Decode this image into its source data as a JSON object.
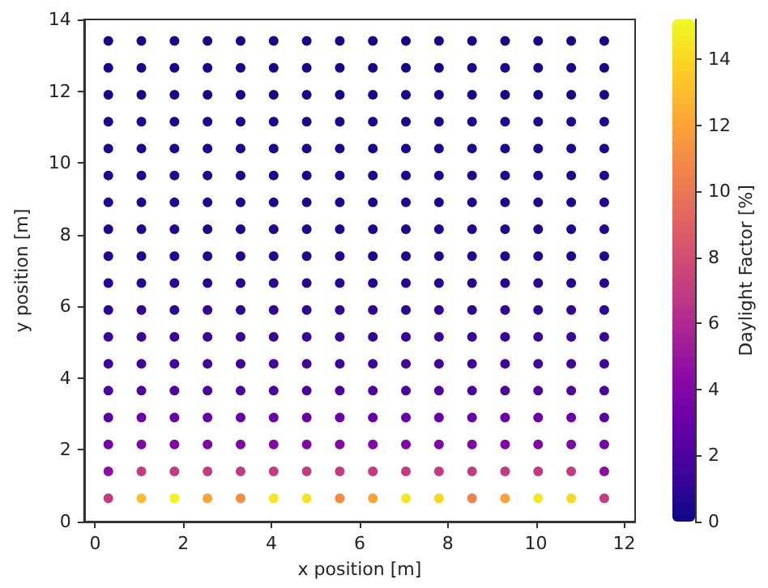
{
  "chart_data": {
    "type": "scatter",
    "xlabel": "x position [m]",
    "ylabel": "y position [m]",
    "clabel": "Daylight Factor [%]",
    "marker": "circle",
    "xlim": [
      -0.25,
      12.25
    ],
    "ylim": [
      0,
      14
    ],
    "xticks": [
      0,
      2,
      4,
      6,
      8,
      10,
      12
    ],
    "yticks": [
      0,
      2,
      4,
      6,
      8,
      10,
      12,
      14
    ],
    "clim": [
      0,
      15.2
    ],
    "cticks": [
      0,
      2,
      4,
      6,
      8,
      10,
      12,
      14
    ],
    "x": [
      0.3,
      1.05,
      1.8,
      2.55,
      3.3,
      4.05,
      4.8,
      5.55,
      6.3,
      7.05,
      7.8,
      8.55,
      9.3,
      10.05,
      10.8,
      11.55,
      0.3,
      1.05,
      1.8,
      2.55,
      3.3,
      4.05,
      4.8,
      5.55,
      6.3,
      7.05,
      7.8,
      8.55,
      9.3,
      10.05,
      10.8,
      11.55,
      0.3,
      1.05,
      1.8,
      2.55,
      3.3,
      4.05,
      4.8,
      5.55,
      6.3,
      7.05,
      7.8,
      8.55,
      9.3,
      10.05,
      10.8,
      11.55,
      0.3,
      1.05,
      1.8,
      2.55,
      3.3,
      4.05,
      4.8,
      5.55,
      6.3,
      7.05,
      7.8,
      8.55,
      9.3,
      10.05,
      10.8,
      11.55,
      0.3,
      1.05,
      1.8,
      2.55,
      3.3,
      4.05,
      4.8,
      5.55,
      6.3,
      7.05,
      7.8,
      8.55,
      9.3,
      10.05,
      10.8,
      11.55,
      0.3,
      1.05,
      1.8,
      2.55,
      3.3,
      4.05,
      4.8,
      5.55,
      6.3,
      7.05,
      7.8,
      8.55,
      9.3,
      10.05,
      10.8,
      11.55,
      0.3,
      1.05,
      1.8,
      2.55,
      3.3,
      4.05,
      4.8,
      5.55,
      6.3,
      7.05,
      7.8,
      8.55,
      9.3,
      10.05,
      10.8,
      11.55,
      0.3,
      1.05,
      1.8,
      2.55,
      3.3,
      4.05,
      4.8,
      5.55,
      6.3,
      7.05,
      7.8,
      8.55,
      9.3,
      10.05,
      10.8,
      11.55,
      0.3,
      1.05,
      1.8,
      2.55,
      3.3,
      4.05,
      4.8,
      5.55,
      6.3,
      7.05,
      7.8,
      8.55,
      9.3,
      10.05,
      10.8,
      11.55,
      0.3,
      1.05,
      1.8,
      2.55,
      3.3,
      4.05,
      4.8,
      5.55,
      6.3,
      7.05,
      7.8,
      8.55,
      9.3,
      10.05,
      10.8,
      11.55,
      0.3,
      1.05,
      1.8,
      2.55,
      3.3,
      4.05,
      4.8,
      5.55,
      6.3,
      7.05,
      7.8,
      8.55,
      9.3,
      10.05,
      10.8,
      11.55,
      0.3,
      1.05,
      1.8,
      2.55,
      3.3,
      4.05,
      4.8,
      5.55,
      6.3,
      7.05,
      7.8,
      8.55,
      9.3,
      10.05,
      10.8,
      11.55,
      0.3,
      1.05,
      1.8,
      2.55,
      3.3,
      4.05,
      4.8,
      5.55,
      6.3,
      7.05,
      7.8,
      8.55,
      9.3,
      10.05,
      10.8,
      11.55,
      0.3,
      1.05,
      1.8,
      2.55,
      3.3,
      4.05,
      4.8,
      5.55,
      6.3,
      7.05,
      7.8,
      8.55,
      9.3,
      10.05,
      10.8,
      11.55,
      0.3,
      1.05,
      1.8,
      2.55,
      3.3,
      4.05,
      4.8,
      5.55,
      6.3,
      7.05,
      7.8,
      8.55,
      9.3,
      10.05,
      10.8,
      11.55,
      0.3,
      1.05,
      1.8,
      2.55,
      3.3,
      4.05,
      4.8,
      5.55,
      6.3,
      7.05,
      7.8,
      8.55,
      9.3,
      10.05,
      10.8,
      11.55,
      0.3,
      1.05,
      1.8,
      2.55,
      3.3,
      4.05,
      4.8,
      5.55,
      6.3,
      7.05,
      7.8,
      8.55,
      9.3,
      10.05,
      10.8,
      11.55,
      0.3,
      1.05,
      1.8,
      2.55,
      3.3,
      4.05,
      4.8,
      5.55,
      6.3,
      7.05,
      7.8,
      8.55,
      9.3,
      10.05,
      10.8,
      11.55
    ],
    "values": [
      0.65,
      0.65,
      0.65,
      0.65,
      0.65,
      0.65,
      0.65,
      0.65,
      0.65,
      0.65,
      0.65,
      0.65,
      0.65,
      0.65,
      0.65,
      0.65,
      1.4,
      1.4,
      1.4,
      1.4,
      1.4,
      1.4,
      1.4,
      1.4,
      1.4,
      1.4,
      1.4,
      1.4,
      1.4,
      1.4,
      1.4,
      1.4,
      2.15,
      2.15,
      2.15,
      2.15,
      2.15,
      2.15,
      2.15,
      2.15,
      2.15,
      2.15,
      2.15,
      2.15,
      2.15,
      2.15,
      2.15,
      2.15,
      2.9,
      2.9,
      2.9,
      2.9,
      2.9,
      2.9,
      2.9,
      2.9,
      2.9,
      2.9,
      2.9,
      2.9,
      2.9,
      2.9,
      2.9,
      2.9,
      3.65,
      3.65,
      3.65,
      3.65,
      3.65,
      3.65,
      3.65,
      3.65,
      3.65,
      3.65,
      3.65,
      3.65,
      3.65,
      3.65,
      3.65,
      3.65,
      4.4,
      4.4,
      4.4,
      4.4,
      4.4,
      4.4,
      4.4,
      4.4,
      4.4,
      4.4,
      4.4,
      4.4,
      4.4,
      4.4,
      4.4,
      4.4,
      5.15,
      5.15,
      5.15,
      5.15,
      5.15,
      5.15,
      5.15,
      5.15,
      5.15,
      5.15,
      5.15,
      5.15,
      5.15,
      5.15,
      5.15,
      5.15,
      5.9,
      5.9,
      5.9,
      5.9,
      5.9,
      5.9,
      5.9,
      5.9,
      5.9,
      5.9,
      5.9,
      5.9,
      5.9,
      5.9,
      5.9,
      5.9,
      6.65,
      6.65,
      6.65,
      6.65,
      6.65,
      6.65,
      6.65,
      6.65,
      6.65,
      6.65,
      6.65,
      6.65,
      6.65,
      6.65,
      6.65,
      6.65,
      7.4,
      7.4,
      7.4,
      7.4,
      7.4,
      7.4,
      7.4,
      7.4,
      7.4,
      7.4,
      7.4,
      7.4,
      7.4,
      7.4,
      7.4,
      7.4,
      8.15,
      8.15,
      8.15,
      8.15,
      8.15,
      8.15,
      8.15,
      8.15,
      8.15,
      8.15,
      8.15,
      8.15,
      8.15,
      8.15,
      8.15,
      8.15,
      8.9,
      8.9,
      8.9,
      8.9,
      8.9,
      8.9,
      8.9,
      8.9,
      8.9,
      8.9,
      8.9,
      8.9,
      8.9,
      8.9,
      8.9,
      8.9,
      9.65,
      9.65,
      9.65,
      9.65,
      9.65,
      9.65,
      9.65,
      9.65,
      9.65,
      9.65,
      9.65,
      9.65,
      9.65,
      9.65,
      9.65,
      9.65,
      10.4,
      10.4,
      10.4,
      10.4,
      10.4,
      10.4,
      10.4,
      10.4,
      10.4,
      10.4,
      10.4,
      10.4,
      10.4,
      10.4,
      10.4,
      10.4,
      11.15,
      11.15,
      11.15,
      11.15,
      11.15,
      11.15,
      11.15,
      11.15,
      11.15,
      11.15,
      11.15,
      11.15,
      11.15,
      11.15,
      11.15,
      11.15,
      11.9,
      11.9,
      11.9,
      11.9,
      11.9,
      11.9,
      11.9,
      11.9,
      11.9,
      11.9,
      11.9,
      11.9,
      11.9,
      11.9,
      11.9,
      11.9,
      12.65,
      12.65,
      12.65,
      12.65,
      12.65,
      12.65,
      12.65,
      12.65,
      12.65,
      12.65,
      12.65,
      12.65,
      12.65,
      12.65,
      12.65,
      12.65,
      13.4,
      13.4,
      13.4,
      13.4,
      13.4,
      13.4,
      13.4,
      13.4,
      13.4,
      13.4,
      13.4,
      13.4,
      13.4,
      13.4,
      13.4,
      13.4
    ],
    "cvalues": [
      7,
      13,
      15,
      12,
      11,
      14.5,
      14.5,
      11,
      12,
      14.5,
      14,
      10.5,
      12,
      14.5,
      14,
      7,
      4.5,
      7,
      7,
      7,
      7,
      7,
      7,
      7,
      7,
      7,
      7,
      7,
      7,
      7,
      7,
      4.5,
      3.5,
      4,
      4,
      4,
      4,
      4,
      4,
      4,
      4,
      4,
      4,
      4,
      4,
      4,
      4,
      3.5,
      2.5,
      3,
      3,
      3,
      3,
      3,
      3,
      3,
      3,
      3,
      3,
      3,
      3,
      3,
      3,
      2.5,
      2,
      2,
      2,
      2,
      2,
      2,
      2,
      2,
      2,
      2,
      2,
      2,
      2,
      2,
      2,
      2,
      1.5,
      1.5,
      1.5,
      1.5,
      1.5,
      1.5,
      1.5,
      1.5,
      1.5,
      1.5,
      1.5,
      1.5,
      1.5,
      1.5,
      1.5,
      1.5,
      1.2,
      1.2,
      1.2,
      1.2,
      1.2,
      1.2,
      1.2,
      1.2,
      1.2,
      1.2,
      1.2,
      1.2,
      1.2,
      1.2,
      1.2,
      1.2,
      1,
      1,
      1,
      1,
      1,
      1,
      1,
      1,
      1,
      1,
      1,
      1,
      1,
      1,
      1,
      1,
      0.8,
      0.8,
      0.8,
      0.8,
      0.8,
      0.8,
      0.8,
      0.8,
      0.8,
      0.8,
      0.8,
      0.8,
      0.8,
      0.8,
      0.8,
      0.8,
      0.7,
      0.7,
      0.7,
      0.7,
      0.7,
      0.7,
      0.7,
      0.7,
      0.7,
      0.7,
      0.7,
      0.7,
      0.7,
      0.7,
      0.7,
      0.7,
      0.6,
      0.6,
      0.6,
      0.6,
      0.6,
      0.6,
      0.6,
      0.6,
      0.6,
      0.6,
      0.6,
      0.6,
      0.6,
      0.6,
      0.6,
      0.6,
      0.5,
      0.5,
      0.5,
      0.5,
      0.5,
      0.5,
      0.5,
      0.5,
      0.5,
      0.5,
      0.5,
      0.5,
      0.5,
      0.5,
      0.5,
      0.5,
      0.5,
      0.5,
      0.5,
      0.5,
      0.5,
      0.5,
      0.5,
      0.5,
      0.5,
      0.5,
      0.5,
      0.5,
      0.5,
      0.5,
      0.5,
      0.5,
      0.4,
      0.4,
      0.4,
      0.4,
      0.4,
      0.4,
      0.4,
      0.4,
      0.4,
      0.4,
      0.4,
      0.4,
      0.4,
      0.4,
      0.4,
      0.4,
      0.4,
      0.4,
      0.4,
      0.4,
      0.4,
      0.4,
      0.4,
      0.4,
      0.4,
      0.4,
      0.4,
      0.4,
      0.4,
      0.4,
      0.4,
      0.4,
      0.3,
      0.3,
      0.3,
      0.3,
      0.3,
      0.3,
      0.3,
      0.3,
      0.3,
      0.3,
      0.3,
      0.3,
      0.3,
      0.3,
      0.3,
      0.3,
      0.3,
      0.3,
      0.3,
      0.3,
      0.3,
      0.3,
      0.3,
      0.3,
      0.3,
      0.3,
      0.3,
      0.3,
      0.3,
      0.3,
      0.3,
      0.3,
      0.3,
      0.3,
      0.3,
      0.3,
      0.3,
      0.3,
      0.3,
      0.3,
      0.3,
      0.3,
      0.3,
      0.3,
      0.3,
      0.3,
      0.3,
      0.3
    ]
  }
}
